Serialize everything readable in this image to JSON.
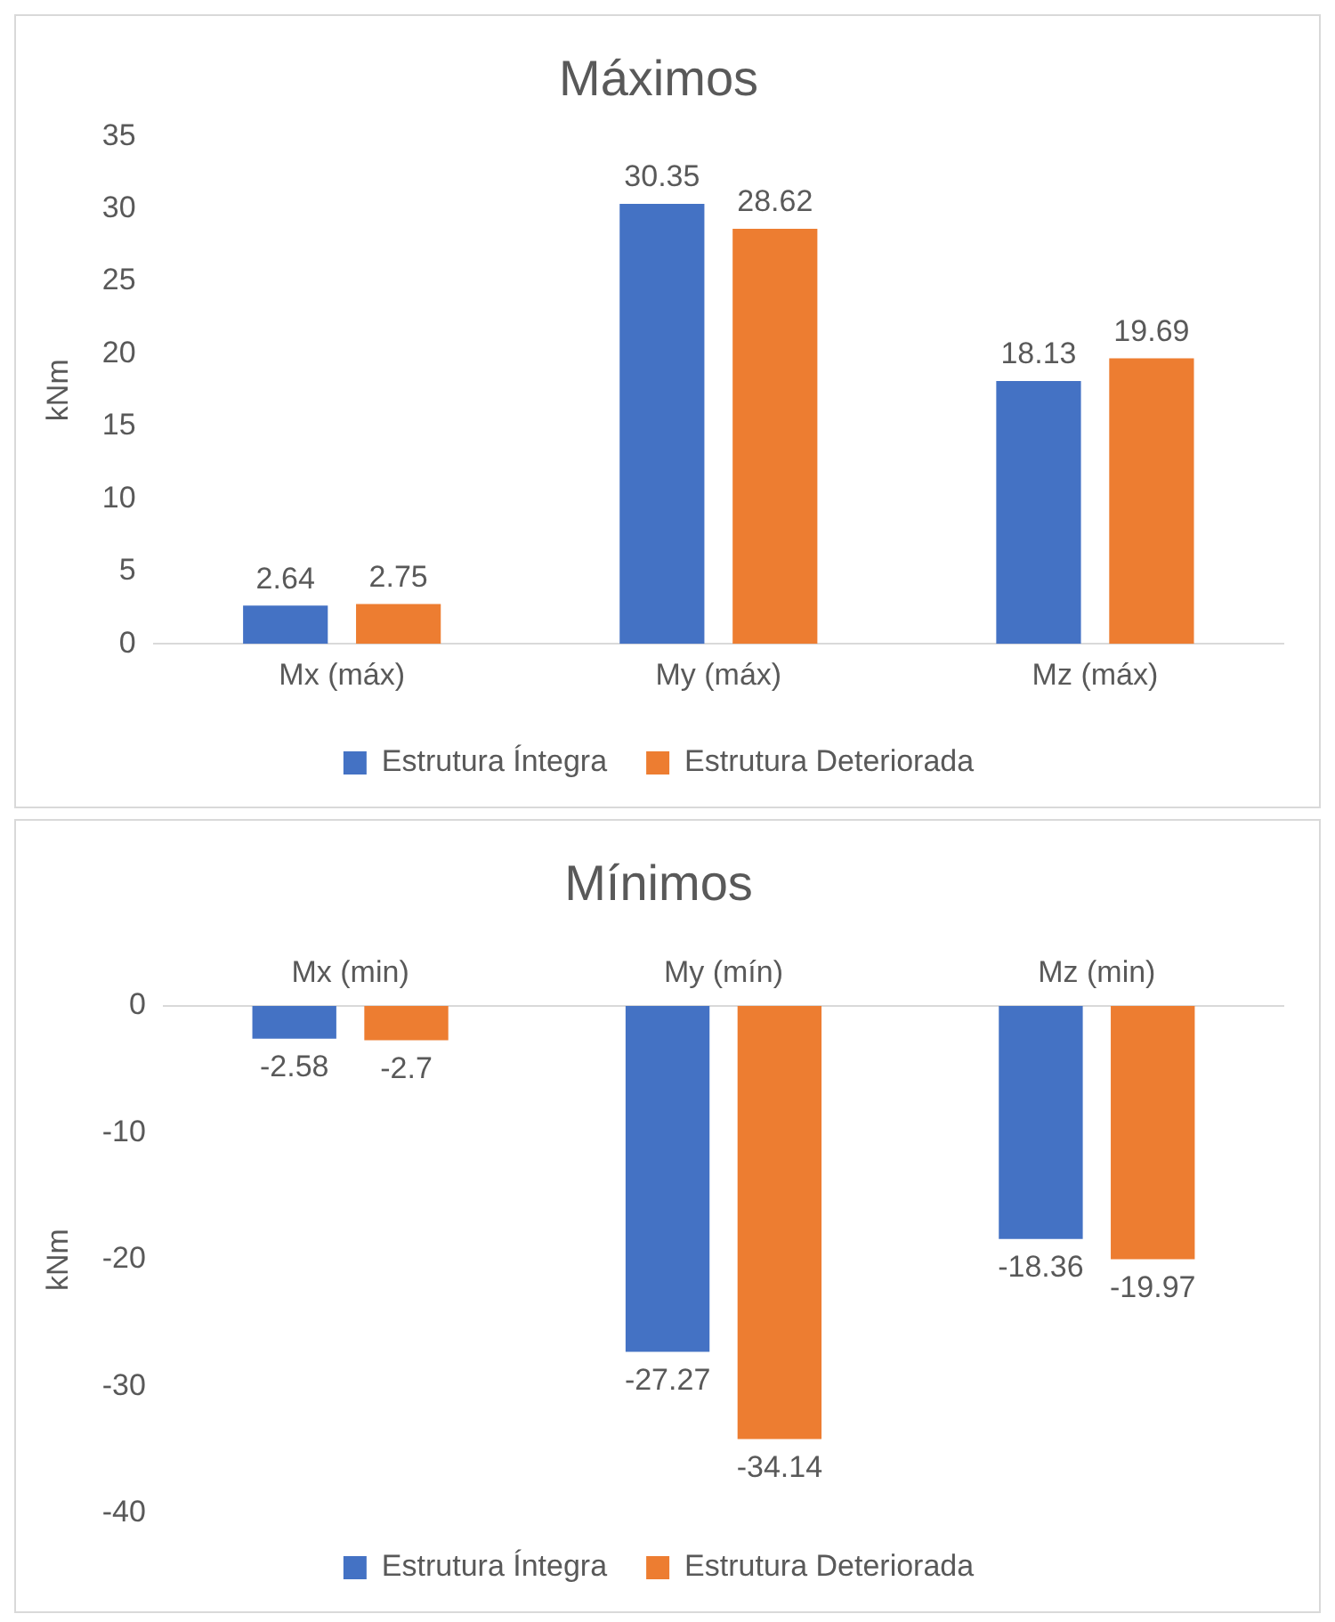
{
  "chart_data": [
    {
      "type": "bar",
      "title": "Máximos",
      "ylabel": "kNm",
      "categories": [
        "Mx (máx)",
        "My (máx)",
        "Mz (máx)"
      ],
      "series": [
        {
          "name": "Estrutura Íntegra",
          "color": "#4472c4",
          "values": [
            2.64,
            30.35,
            18.13
          ]
        },
        {
          "name": "Estrutura Deteriorada",
          "color": "#ed7d31",
          "values": [
            2.75,
            28.62,
            19.69
          ]
        }
      ],
      "ylim": [
        0,
        35
      ],
      "yticks": [
        0,
        5,
        10,
        15,
        20,
        25,
        30,
        35
      ],
      "grid": false,
      "legend": "bottom",
      "data_labels": true
    },
    {
      "type": "bar",
      "title": "Mínimos",
      "ylabel": "kNm",
      "categories": [
        "Mx (min)",
        "My (mín)",
        "Mz (min)"
      ],
      "series": [
        {
          "name": "Estrutura Íntegra",
          "color": "#4472c4",
          "values": [
            -2.58,
            -27.27,
            -18.36
          ]
        },
        {
          "name": "Estrutura Deteriorada",
          "color": "#ed7d31",
          "values": [
            -2.7,
            -34.14,
            -19.97
          ]
        }
      ],
      "ylim": [
        -40,
        0
      ],
      "yticks": [
        -40,
        -30,
        -20,
        -10,
        0
      ],
      "grid": false,
      "legend": "bottom",
      "data_labels": true
    }
  ]
}
